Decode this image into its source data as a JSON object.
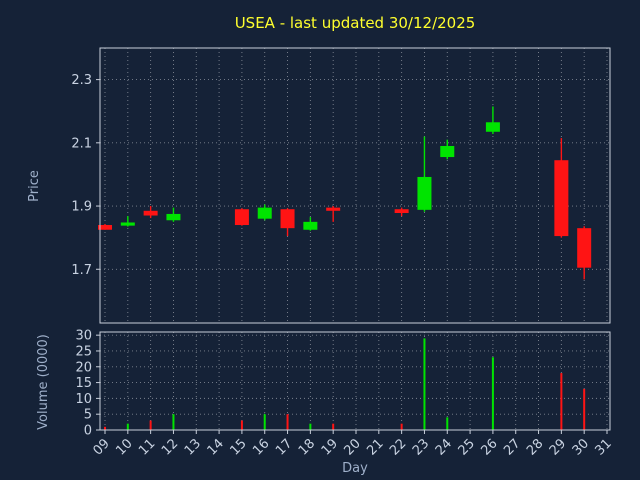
{
  "colors": {
    "background": "#152237",
    "title": "#ffff2e",
    "axis_label": "#9fb0ca",
    "tick_label": "#c9d3e2",
    "grid": "#ffffff",
    "spine": "#c9d0db",
    "up": "#00e400",
    "down": "#ff1414"
  },
  "chart_data": {
    "type": "candlestick+volume",
    "title": "USEA - last updated 30/12/2025",
    "xlabel": "Day",
    "price_ylabel": "Price",
    "volume_ylabel": "Volume (0000)",
    "x_ticks": [
      "09",
      "10",
      "11",
      "12",
      "13",
      "14",
      "15",
      "16",
      "17",
      "18",
      "19",
      "20",
      "21",
      "22",
      "23",
      "24",
      "25",
      "26",
      "27",
      "28",
      "29",
      "30",
      "31"
    ],
    "price_ticks": [
      1.7,
      1.9,
      2.1,
      2.3
    ],
    "price_range": [
      1.53,
      2.4
    ],
    "volume_ticks": [
      0,
      5,
      10,
      15,
      20,
      25,
      30
    ],
    "volume_range": [
      0,
      31
    ],
    "grid": "dotted",
    "candles": [
      {
        "day": 9,
        "open": 1.84,
        "high": 1.843,
        "low": 1.825,
        "close": 1.825,
        "volume": 1
      },
      {
        "day": 10,
        "open": 1.838,
        "high": 1.868,
        "low": 1.835,
        "close": 1.848,
        "volume": 2
      },
      {
        "day": 11,
        "open": 1.885,
        "high": 1.9,
        "low": 1.862,
        "close": 1.87,
        "volume": 3
      },
      {
        "day": 12,
        "open": 1.855,
        "high": 1.895,
        "low": 1.85,
        "close": 1.875,
        "volume": 5
      },
      {
        "day": 15,
        "open": 1.89,
        "high": 1.893,
        "low": 1.838,
        "close": 1.84,
        "volume": 3
      },
      {
        "day": 16,
        "open": 1.86,
        "high": 1.905,
        "low": 1.855,
        "close": 1.895,
        "volume": 5
      },
      {
        "day": 17,
        "open": 1.89,
        "high": 1.893,
        "low": 1.805,
        "close": 1.83,
        "volume": 5
      },
      {
        "day": 18,
        "open": 1.825,
        "high": 1.865,
        "low": 1.822,
        "close": 1.85,
        "volume": 2
      },
      {
        "day": 19,
        "open": 1.895,
        "high": 1.9,
        "low": 1.85,
        "close": 1.885,
        "volume": 2
      },
      {
        "day": 22,
        "open": 1.89,
        "high": 1.895,
        "low": 1.868,
        "close": 1.878,
        "volume": 2
      },
      {
        "day": 23,
        "open": 1.888,
        "high": 2.12,
        "low": 1.882,
        "close": 1.992,
        "volume": 29
      },
      {
        "day": 24,
        "open": 2.055,
        "high": 2.11,
        "low": 2.048,
        "close": 2.09,
        "volume": 4
      },
      {
        "day": 26,
        "open": 2.135,
        "high": 2.215,
        "low": 2.128,
        "close": 2.165,
        "volume": 23
      },
      {
        "day": 29,
        "open": 2.045,
        "high": 2.115,
        "low": 1.8,
        "close": 1.805,
        "volume": 18
      },
      {
        "day": 30,
        "open": 1.83,
        "high": 1.836,
        "low": 1.668,
        "close": 1.705,
        "volume": 13
      }
    ]
  }
}
